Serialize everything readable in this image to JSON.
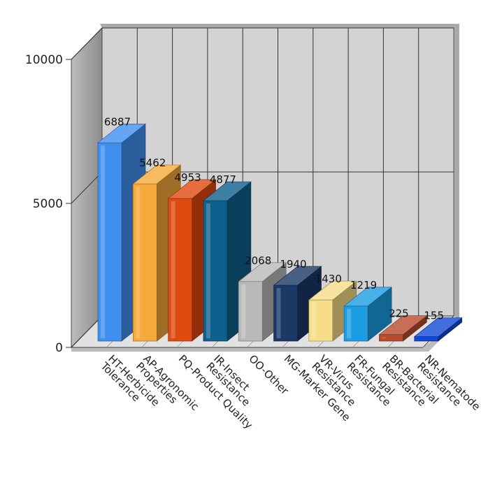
{
  "chart_data": {
    "type": "bar",
    "style": "3d-column",
    "categories": [
      "HT-Herbicide Tolerance",
      "AP-Agronomic Properties",
      "PQ-Product Quality",
      "IR-Insect Resistance",
      "OO-Other",
      "MG-Marker Gene",
      "VR-Virus Resistance",
      "FR-Fungal Resistance",
      "BR-Bacterial Resistance",
      "NR-Nematode Resistance"
    ],
    "values": [
      6887,
      5462,
      4953,
      4877,
      2068,
      1940,
      1430,
      1219,
      225,
      155
    ],
    "value_labels": [
      "6887",
      "5462",
      "4953",
      "4877",
      "2068",
      "1940",
      "1430",
      "1219",
      "225",
      "155"
    ],
    "bar_colors": [
      "#3f8ff0",
      "#f5a93a",
      "#e0490f",
      "#0f5f8c",
      "#b9b9b9",
      "#1b3867",
      "#f6dd88",
      "#1c9de2",
      "#b84b2c",
      "#1148d6"
    ],
    "ylim": [
      0,
      10000
    ],
    "yticks": [
      0,
      5000,
      10000
    ],
    "ytick_labels": [
      "0",
      "5000",
      "10000"
    ],
    "grid": true,
    "title": "",
    "xlabel": "",
    "ylabel": ""
  }
}
